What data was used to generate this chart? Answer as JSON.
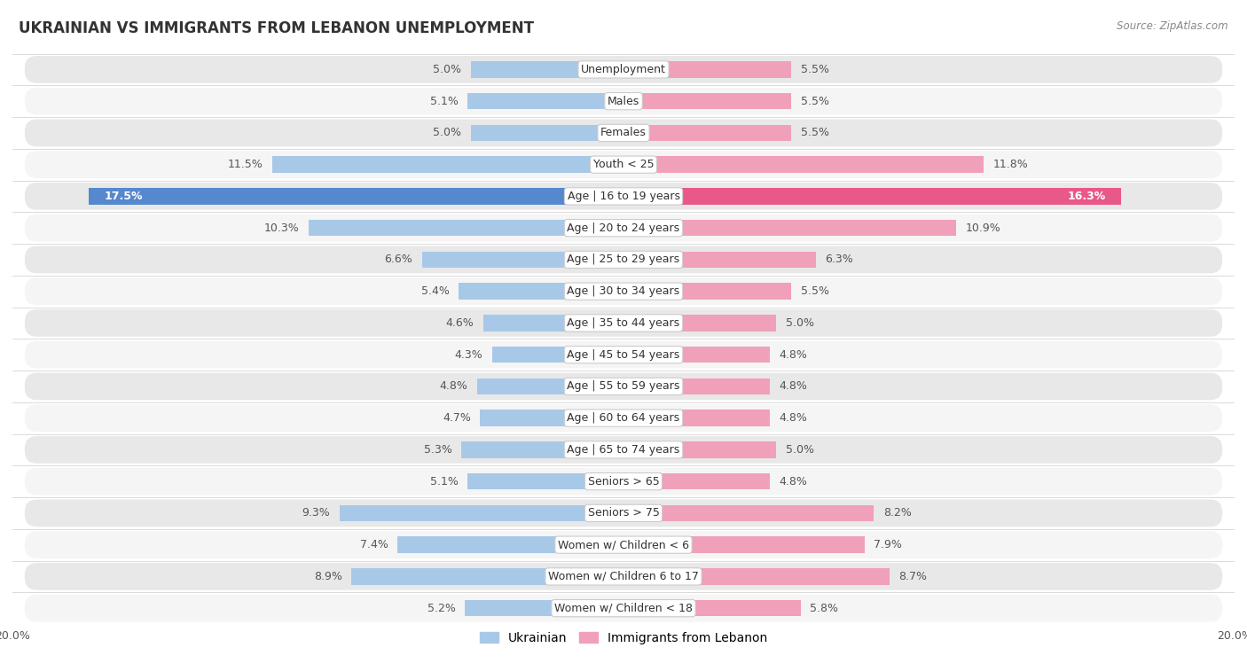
{
  "title": "UKRAINIAN VS IMMIGRANTS FROM LEBANON UNEMPLOYMENT",
  "source": "Source: ZipAtlas.com",
  "categories": [
    "Unemployment",
    "Males",
    "Females",
    "Youth < 25",
    "Age | 16 to 19 years",
    "Age | 20 to 24 years",
    "Age | 25 to 29 years",
    "Age | 30 to 34 years",
    "Age | 35 to 44 years",
    "Age | 45 to 54 years",
    "Age | 55 to 59 years",
    "Age | 60 to 64 years",
    "Age | 65 to 74 years",
    "Seniors > 65",
    "Seniors > 75",
    "Women w/ Children < 6",
    "Women w/ Children 6 to 17",
    "Women w/ Children < 18"
  ],
  "ukrainian": [
    5.0,
    5.1,
    5.0,
    11.5,
    17.5,
    10.3,
    6.6,
    5.4,
    4.6,
    4.3,
    4.8,
    4.7,
    5.3,
    5.1,
    9.3,
    7.4,
    8.9,
    5.2
  ],
  "lebanon": [
    5.5,
    5.5,
    5.5,
    11.8,
    16.3,
    10.9,
    6.3,
    5.5,
    5.0,
    4.8,
    4.8,
    4.8,
    5.0,
    4.8,
    8.2,
    7.9,
    8.7,
    5.8
  ],
  "ukrainian_color": "#a8c8e8",
  "lebanon_color": "#f0a0b8",
  "ukrainian_highlight_color": "#5588cc",
  "lebanon_highlight_color": "#e85888",
  "highlight_row": 4,
  "background_color": "#ffffff",
  "row_bg_even": "#f5f5f5",
  "row_bg_odd": "#e8e8e8",
  "axis_limit": 20.0,
  "legend_ukrainian": "Ukrainian",
  "legend_lebanon": "Immigrants from Lebanon",
  "bar_height": 0.52
}
